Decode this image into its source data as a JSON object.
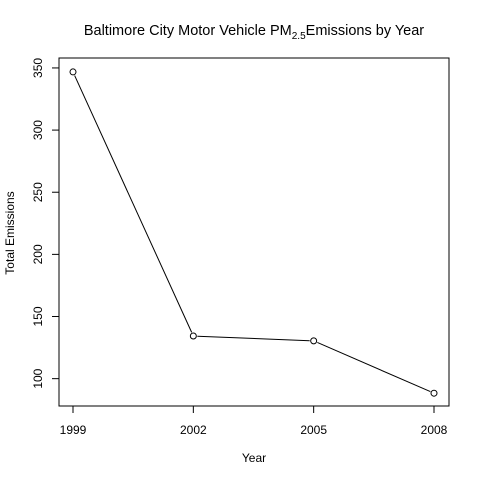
{
  "chart_data": {
    "type": "line",
    "title": {
      "prefix": "Baltimore City Motor Vehicle PM",
      "subscript": "2.5",
      "suffix": "Emissions by Year"
    },
    "xlabel": "Year",
    "ylabel": "Total Emissions",
    "x": [
      1999,
      2002,
      2005,
      2008
    ],
    "x_tick_labels": [
      "1999",
      "2002",
      "2005",
      "2008"
    ],
    "y_ticks": [
      100,
      150,
      200,
      250,
      300,
      350
    ],
    "y_tick_labels": [
      "100",
      "150",
      "200",
      "250",
      "300",
      "350"
    ],
    "ylim": [
      78,
      358
    ],
    "series": [
      {
        "values": [
          346.8,
          134.3,
          130.4,
          88.3
        ],
        "color": "#000000",
        "marker": "open-circle"
      }
    ],
    "grid": false,
    "legend": "none"
  }
}
